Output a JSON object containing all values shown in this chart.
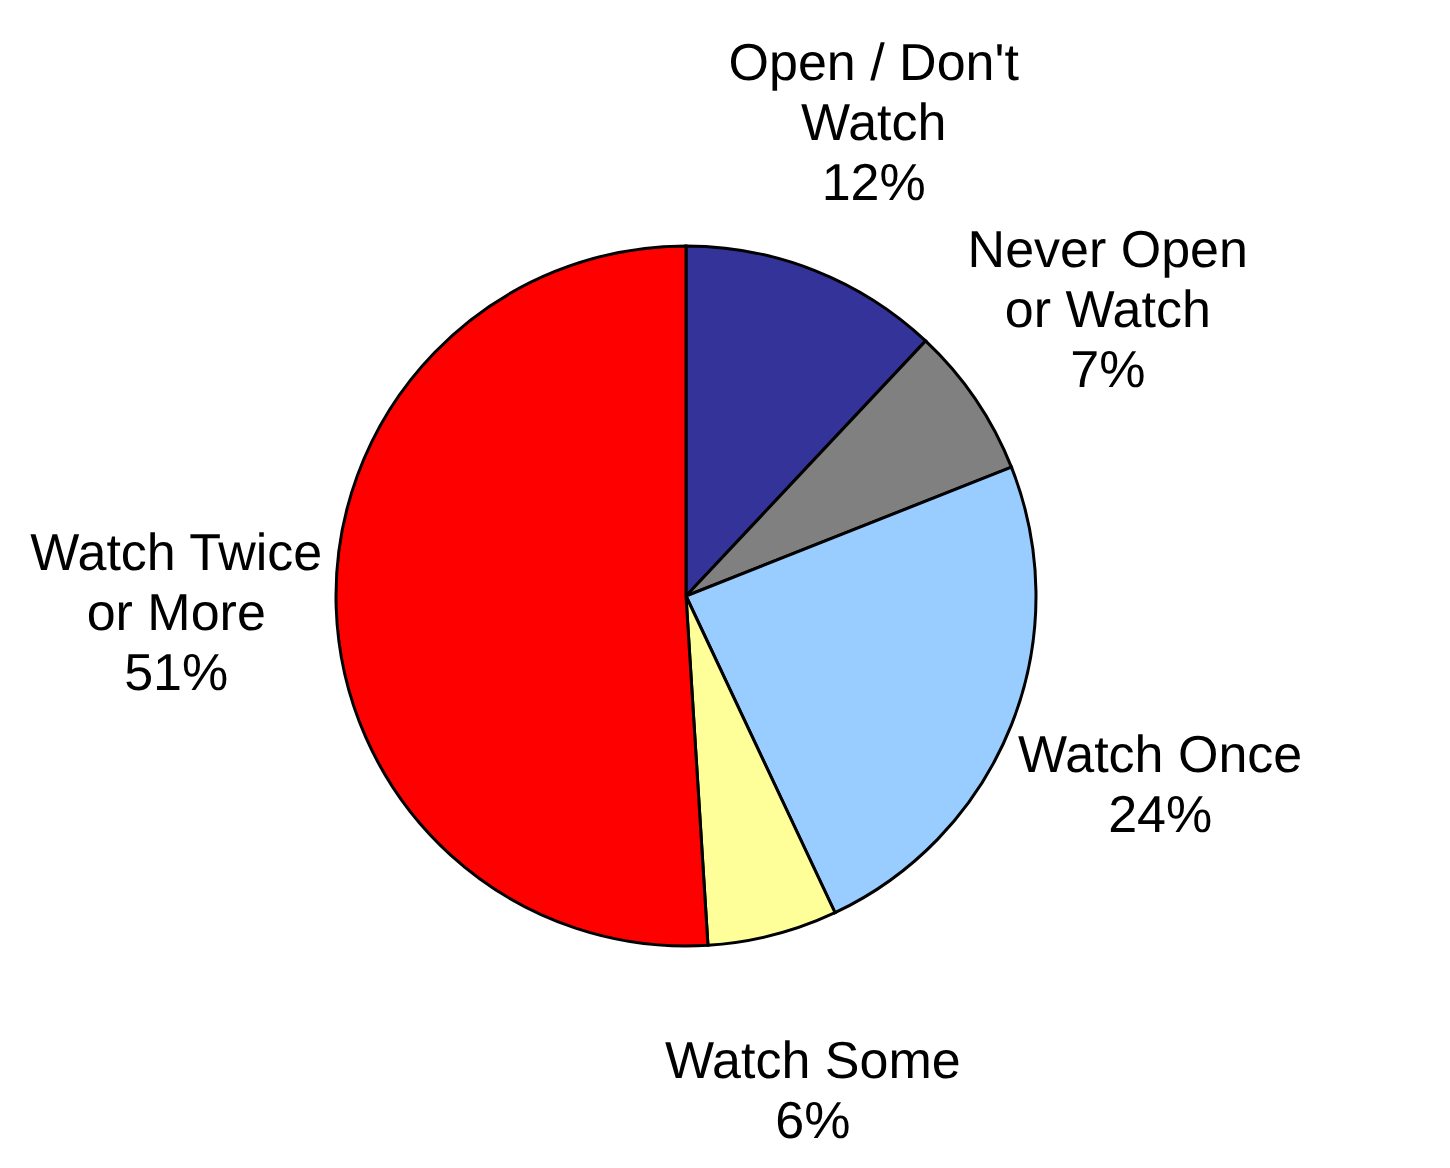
{
  "chart_data": {
    "type": "pie",
    "categories": [
      "Open / Don't Watch",
      "Never Open or Watch",
      "Watch Once",
      "Watch Some",
      "Watch Twice or More"
    ],
    "values": [
      12,
      7,
      24,
      6,
      51
    ],
    "colors": [
      "#333399",
      "#808080",
      "#99ccff",
      "#ffff99",
      "#ff0000"
    ],
    "value_labels": [
      "12%",
      "7%",
      "24%",
      "6%",
      "51%"
    ],
    "legend": false
  }
}
